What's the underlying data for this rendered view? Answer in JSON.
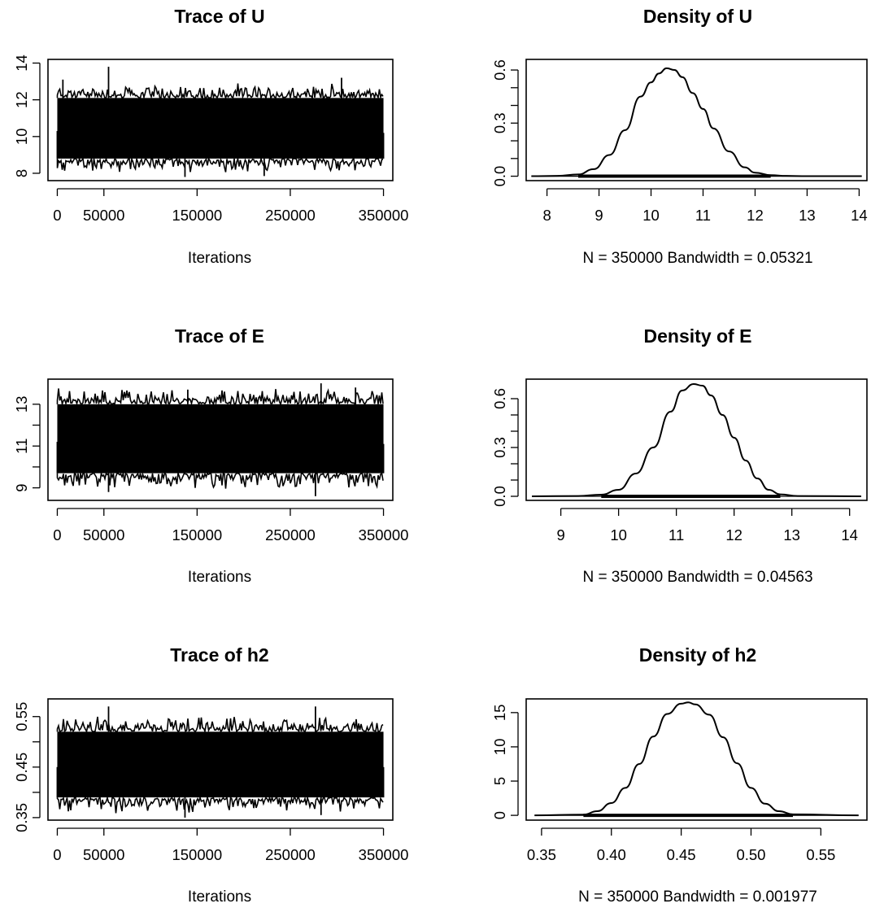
{
  "chart_data": [
    {
      "type": "line",
      "kind": "trace",
      "title": "Trace of U",
      "xlabel": "Iterations",
      "ylabel": "",
      "xlim": [
        -10000,
        360000
      ],
      "ylim": [
        7.6,
        14.2
      ],
      "xticks": [
        0,
        50000,
        150000,
        250000,
        350000
      ],
      "xtick_labels": [
        "0",
        "50000",
        "150000",
        "250000",
        "350000"
      ],
      "yticks": [
        8,
        10,
        12,
        14
      ],
      "ytick_labels": [
        "8",
        "10",
        "12",
        "14"
      ],
      "band": [
        8.8,
        12.1
      ],
      "series": [
        {
          "x": [
            0,
            6000,
            55000,
            137000,
            222000,
            305000,
            350000
          ],
          "y": [
            10.3,
            13.1,
            13.8,
            7.8,
            7.85,
            13.2,
            10.2
          ]
        }
      ]
    },
    {
      "type": "line",
      "kind": "density",
      "title": "Density of U",
      "xlabel": "N = 350000   Bandwidth = 0.05321",
      "ylabel": "",
      "xlim": [
        7.6,
        14.15
      ],
      "ylim": [
        -0.025,
        0.66
      ],
      "xticks": [
        8,
        9,
        10,
        11,
        12,
        13,
        14
      ],
      "xtick_labels": [
        "8",
        "9",
        "10",
        "11",
        "12",
        "13",
        "14"
      ],
      "yticks": [
        0.0,
        0.3,
        0.6
      ],
      "ytick_labels": [
        "0.0",
        "0.3",
        "0.6"
      ],
      "yticks_minor": [
        0.1,
        0.2,
        0.4,
        0.5
      ],
      "rug_range": [
        7.7,
        14.05
      ],
      "series": [
        {
          "x": [
            7.7,
            8.2,
            8.6,
            8.9,
            9.2,
            9.5,
            9.8,
            10.0,
            10.15,
            10.3,
            10.45,
            10.6,
            10.8,
            11.0,
            11.2,
            11.5,
            11.8,
            12.0,
            12.3,
            12.6,
            13.0,
            14.05
          ],
          "y": [
            0.0,
            0.002,
            0.01,
            0.04,
            0.12,
            0.26,
            0.45,
            0.53,
            0.58,
            0.61,
            0.6,
            0.56,
            0.47,
            0.38,
            0.27,
            0.14,
            0.05,
            0.02,
            0.006,
            0.002,
            0.0,
            0.0
          ]
        }
      ]
    },
    {
      "type": "line",
      "kind": "trace",
      "title": "Trace of E",
      "xlabel": "Iterations",
      "ylabel": "",
      "xlim": [
        -10000,
        360000
      ],
      "ylim": [
        8.4,
        14.2
      ],
      "xticks": [
        0,
        50000,
        150000,
        250000,
        350000
      ],
      "xtick_labels": [
        "0",
        "50000",
        "150000",
        "250000",
        "350000"
      ],
      "yticks": [
        9,
        10,
        11,
        12,
        13
      ],
      "ytick_labels": [
        "9",
        "",
        "11",
        "",
        "13"
      ],
      "band": [
        9.7,
        13.0
      ],
      "series": [
        {
          "x": [
            0,
            55000,
            140000,
            277000,
            283000,
            320000,
            350000
          ],
          "y": [
            11.2,
            8.8,
            13.7,
            8.6,
            14.0,
            13.8,
            11.1
          ]
        }
      ]
    },
    {
      "type": "line",
      "kind": "density",
      "title": "Density of E",
      "xlabel": "N = 350000   Bandwidth = 0.04563",
      "ylabel": "",
      "xlim": [
        8.4,
        14.3
      ],
      "ylim": [
        -0.025,
        0.72
      ],
      "xticks": [
        9,
        10,
        11,
        12,
        13,
        14
      ],
      "xtick_labels": [
        "9",
        "10",
        "11",
        "12",
        "13",
        "14"
      ],
      "yticks": [
        0.0,
        0.3,
        0.6
      ],
      "ytick_labels": [
        "0.0",
        "0.3",
        "0.6"
      ],
      "yticks_minor": [
        0.1,
        0.2,
        0.4,
        0.5
      ],
      "rug_range": [
        8.5,
        14.2
      ],
      "series": [
        {
          "x": [
            8.5,
            9.3,
            9.7,
            10.0,
            10.3,
            10.6,
            10.9,
            11.1,
            11.3,
            11.45,
            11.6,
            11.8,
            12.0,
            12.2,
            12.4,
            12.6,
            12.8,
            13.1,
            14.2
          ],
          "y": [
            0.0,
            0.002,
            0.01,
            0.04,
            0.14,
            0.3,
            0.52,
            0.65,
            0.69,
            0.68,
            0.62,
            0.5,
            0.36,
            0.22,
            0.11,
            0.04,
            0.012,
            0.002,
            0.0
          ]
        }
      ]
    },
    {
      "type": "line",
      "kind": "trace",
      "title": "Trace of h2",
      "xlabel": "Iterations",
      "ylabel": "",
      "xlim": [
        -10000,
        360000
      ],
      "ylim": [
        0.345,
        0.585
      ],
      "xticks": [
        0,
        50000,
        150000,
        250000,
        350000
      ],
      "xtick_labels": [
        "0",
        "50000",
        "150000",
        "250000",
        "350000"
      ],
      "yticks": [
        0.35,
        0.4,
        0.45,
        0.5,
        0.55
      ],
      "ytick_labels": [
        "0.35",
        "",
        "0.45",
        "",
        "0.55"
      ],
      "band": [
        0.39,
        0.52
      ],
      "series": [
        {
          "x": [
            0,
            55000,
            137000,
            277000,
            283000,
            350000
          ],
          "y": [
            0.45,
            0.57,
            0.35,
            0.57,
            0.355,
            0.45
          ]
        }
      ]
    },
    {
      "type": "line",
      "kind": "density",
      "title": "Density of h2",
      "xlabel": "N = 350000   Bandwidth = 0.001977",
      "ylabel": "",
      "xlim": [
        0.339,
        0.583
      ],
      "ylim": [
        -0.7,
        17.0
      ],
      "xticks": [
        0.35,
        0.4,
        0.45,
        0.5,
        0.55
      ],
      "xtick_labels": [
        "0.35",
        "0.40",
        "0.45",
        "0.50",
        "0.55"
      ],
      "yticks": [
        0,
        5,
        10,
        15
      ],
      "ytick_labels": [
        "0",
        "5",
        "10",
        "15"
      ],
      "rug_range": [
        0.345,
        0.577
      ],
      "series": [
        {
          "x": [
            0.345,
            0.38,
            0.39,
            0.4,
            0.41,
            0.42,
            0.43,
            0.44,
            0.45,
            0.455,
            0.46,
            0.47,
            0.48,
            0.49,
            0.5,
            0.51,
            0.52,
            0.53,
            0.577
          ],
          "y": [
            0.0,
            0.1,
            0.6,
            1.8,
            4.0,
            7.5,
            11.5,
            14.8,
            16.3,
            16.5,
            16.2,
            14.7,
            11.4,
            7.6,
            4.0,
            1.7,
            0.6,
            0.15,
            0.0
          ]
        }
      ]
    }
  ]
}
